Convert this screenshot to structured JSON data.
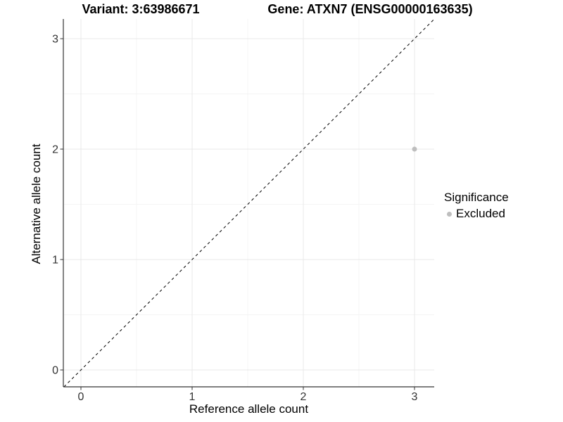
{
  "chart_data": {
    "type": "scatter",
    "title_left": "Variant: 3:63986671",
    "title_right": "Gene: ATXN7 (ENSG00000163635)",
    "xlabel": "Reference allele count",
    "ylabel": "Alternative allele count",
    "xlim": [
      -0.16,
      3.18
    ],
    "ylim": [
      -0.16,
      3.18
    ],
    "x_ticks": [
      0,
      1,
      2,
      3
    ],
    "y_ticks": [
      0,
      1,
      2,
      3
    ],
    "x_minor_ticks": [
      0.5,
      1.5,
      2.5
    ],
    "y_minor_ticks": [
      0.5,
      1.5,
      2.5
    ],
    "grid": true,
    "points": [
      {
        "x": 3,
        "y": 2,
        "series": "Excluded"
      }
    ],
    "reference_line": {
      "type": "abline",
      "slope": 1,
      "intercept": 0,
      "style": "dashed",
      "color": "#000000"
    },
    "legend": {
      "title": "Significance",
      "position": "right",
      "entries": [
        {
          "label": "Excluded",
          "color": "#bebebe"
        }
      ]
    },
    "colors": {
      "point": "#bebebe",
      "grid_major": "#e8e8e8",
      "grid_minor": "#f4f4f4",
      "axis_line": "#333333",
      "tick_text": "#333333",
      "background": "#ffffff"
    }
  }
}
